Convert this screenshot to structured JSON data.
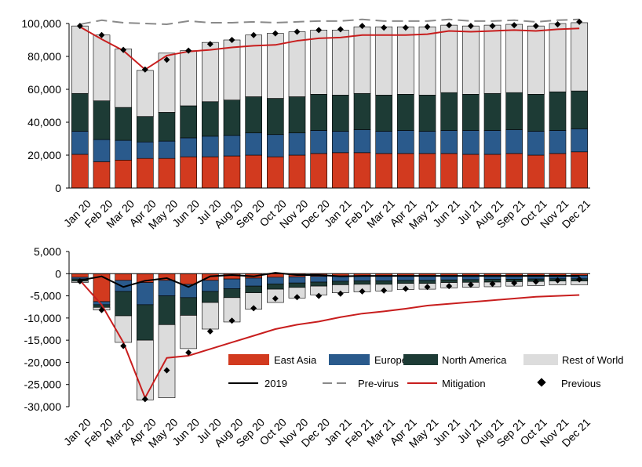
{
  "colors": {
    "east_asia": "#d23a1f",
    "europe": "#2a5a8c",
    "north_america": "#1d3b35",
    "rest_of_world": "#dcdcdc",
    "line_2019": "#000000",
    "pre_virus": "#8a8a8a",
    "mitigation": "#c81e1e",
    "previous": "#000000"
  },
  "legend": {
    "east_asia": "East Asia",
    "europe": "Europe",
    "north_america": "North America",
    "rest_of_world": "Rest of World",
    "line_2019": "2019",
    "pre_virus": "Pre-virus",
    "mitigation": "Mitigation",
    "previous": "Previous"
  },
  "chart_data": [
    {
      "type": "bar",
      "stacked": true,
      "categories": [
        "Jan 20",
        "Feb 20",
        "Mar 20",
        "Apr 20",
        "May 20",
        "Jun 20",
        "Jul 20",
        "Aug 20",
        "Sep 20",
        "Oct 20",
        "Nov 20",
        "Dec 20",
        "Jan 21",
        "Feb 21",
        "Mar 21",
        "Apr 21",
        "May 21",
        "Jun 21",
        "Jul 21",
        "Aug 21",
        "Sep 21",
        "Oct 21",
        "Nov 21",
        "Dec 21"
      ],
      "ylim": [
        0,
        100000
      ],
      "yticks": [
        "0",
        "20,000",
        "40,000",
        "60,000",
        "80,000",
        "100,000"
      ],
      "series": [
        {
          "name": "East Asia",
          "values": [
            20500,
            16000,
            17000,
            18000,
            18000,
            19000,
            19000,
            19500,
            20000,
            19000,
            20000,
            21000,
            21500,
            21500,
            21000,
            21000,
            21000,
            21000,
            20500,
            20500,
            21000,
            20000,
            21000,
            22000
          ]
        },
        {
          "name": "Europe",
          "values": [
            14000,
            13500,
            12000,
            10000,
            10500,
            11500,
            12500,
            12500,
            13500,
            13500,
            13500,
            14000,
            13000,
            14000,
            13500,
            14000,
            13500,
            14000,
            14500,
            14500,
            14500,
            14500,
            14000,
            14000
          ]
        },
        {
          "name": "North America",
          "values": [
            23000,
            23500,
            20000,
            15500,
            17500,
            19500,
            21000,
            21500,
            22000,
            22000,
            22000,
            22000,
            22000,
            22000,
            22000,
            22000,
            22000,
            23000,
            22000,
            22500,
            22500,
            22500,
            23500,
            23000
          ]
        },
        {
          "name": "Rest of World",
          "values": [
            41000,
            40000,
            35500,
            28000,
            36000,
            33500,
            36000,
            36500,
            37500,
            39500,
            39500,
            39000,
            39500,
            40500,
            41500,
            41000,
            41500,
            41000,
            41500,
            41500,
            41500,
            41500,
            41500,
            41500
          ]
        }
      ],
      "lines": [
        {
          "name": "Pre-virus",
          "values": [
            99500,
            102000,
            100500,
            100000,
            99500,
            101500,
            100500,
            100500,
            101000,
            100500,
            101000,
            101500,
            101500,
            102500,
            101500,
            101500,
            101500,
            102500,
            101500,
            101500,
            102000,
            101000,
            102000,
            102500
          ]
        },
        {
          "name": "Mitigation",
          "values": [
            98000,
            90500,
            83500,
            72000,
            80500,
            83000,
            84000,
            85500,
            86500,
            87000,
            89500,
            91000,
            91500,
            93000,
            93000,
            93000,
            93500,
            95500,
            95000,
            95500,
            96000,
            95500,
            96500,
            97000
          ]
        }
      ],
      "markers": {
        "name": "Previous",
        "values": [
          98500,
          93000,
          84000,
          72000,
          78000,
          83500,
          87500,
          90000,
          93000,
          94000,
          95000,
          96000,
          96500,
          98500,
          97500,
          97500,
          98000,
          99000,
          98500,
          98500,
          99000,
          98500,
          99500,
          101000
        ]
      }
    },
    {
      "type": "bar",
      "stacked": true,
      "categories": [
        "Jan 20",
        "Feb 20",
        "Mar 20",
        "Apr 20",
        "May 20",
        "Jun 20",
        "Jul 20",
        "Aug 20",
        "Sep 20",
        "Oct 20",
        "Nov 20",
        "Dec 20",
        "Jan 21",
        "Feb 21",
        "Mar 21",
        "Apr 21",
        "May 21",
        "Jun 21",
        "Jul 21",
        "Aug 21",
        "Sep 21",
        "Oct 21",
        "Nov 21",
        "Dec 21"
      ],
      "ylim": [
        -30000,
        5000
      ],
      "yticks": [
        "-30,000",
        "-25,000",
        "-20,000",
        "-15,000",
        "-10,000",
        "-5,000",
        "0",
        "5,000"
      ],
      "series": [
        {
          "name": "East Asia",
          "values": [
            -800,
            -6300,
            -1500,
            -2000,
            -1500,
            -2400,
            -1500,
            -1200,
            -1000,
            -800,
            -700,
            -600,
            -500,
            -500,
            -500,
            -500,
            -500,
            -500,
            -450,
            -450,
            -450,
            -400,
            -400,
            -400
          ]
        },
        {
          "name": "Europe",
          "values": [
            -400,
            -700,
            -2500,
            -5000,
            -3500,
            -3000,
            -2500,
            -2200,
            -1800,
            -1500,
            -1400,
            -1300,
            -1200,
            -1100,
            -1100,
            -1000,
            -1000,
            -900,
            -900,
            -850,
            -800,
            -800,
            -750,
            -750
          ]
        },
        {
          "name": "North America",
          "values": [
            -500,
            -600,
            -5500,
            -8000,
            -6500,
            -4000,
            -2500,
            -2000,
            -1500,
            -1200,
            -1000,
            -900,
            -800,
            -800,
            -800,
            -700,
            -700,
            -600,
            -600,
            -600,
            -550,
            -550,
            -500,
            -500
          ]
        },
        {
          "name": "Rest of World",
          "values": [
            -300,
            -600,
            -6000,
            -13500,
            -16500,
            -7500,
            -6000,
            -5500,
            -3700,
            -3000,
            -2400,
            -2000,
            -1800,
            -1700,
            -1500,
            -1400,
            -1300,
            -1200,
            -1100,
            -1050,
            -1000,
            -950,
            -900,
            -850
          ]
        }
      ],
      "lines": [
        {
          "name": "2019",
          "values": [
            -1500,
            -600,
            -3000,
            -1600,
            -1000,
            -3000,
            -600,
            -300,
            -600,
            200,
            -300,
            -300,
            -600,
            -500,
            -500,
            -500,
            -500,
            -500,
            -500,
            -500,
            -500,
            -500,
            -500,
            -500
          ]
        },
        {
          "name": "Mitigation",
          "values": [
            -1500,
            -7000,
            -15500,
            -28000,
            -19000,
            -18500,
            -17000,
            -15500,
            -14000,
            -12500,
            -11500,
            -10800,
            -9800,
            -9000,
            -8500,
            -7900,
            -7200,
            -6800,
            -6400,
            -6000,
            -5600,
            -5200,
            -5000,
            -4800
          ]
        }
      ],
      "markers": {
        "name": "Previous",
        "values": [
          -1700,
          -8200,
          -16300,
          -28300,
          -21800,
          -17800,
          -13000,
          -10600,
          -7800,
          -5600,
          -5300,
          -5000,
          -4500,
          -4000,
          -3800,
          -3400,
          -3000,
          -2800,
          -2500,
          -2300,
          -2100,
          -1800,
          -1500,
          -1300
        ]
      }
    }
  ]
}
